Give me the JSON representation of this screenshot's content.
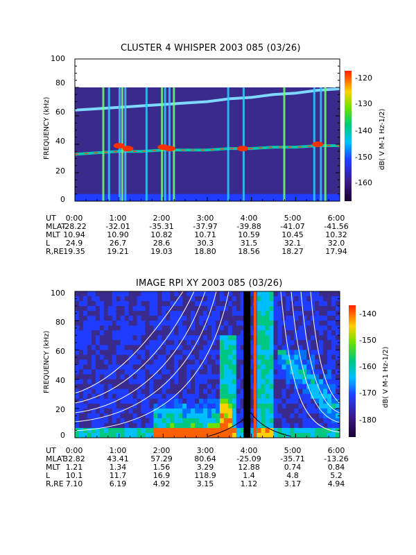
{
  "chart_data": [
    {
      "type": "heatmap",
      "title": "CLUSTER 4 WHISPER 2003 085 (03/26)",
      "ylabel": "FREQUENCY (kHz)",
      "ylim": [
        0,
        100
      ],
      "y_ticks": [
        "0",
        "20",
        "40",
        "60",
        "80",
        "100"
      ],
      "colorbar": {
        "label": "dB( V M-1 Hz-1/2)",
        "range": [
          -167,
          -117
        ],
        "ticks": [
          "-120",
          "-130",
          "-140",
          "-150",
          "-160"
        ]
      },
      "data_ceiling_khz": 80,
      "features": {
        "lower_band_khz": [
          [
            0,
            33
          ],
          [
            0.5,
            34
          ],
          [
            1,
            35
          ],
          [
            1.5,
            35
          ],
          [
            2,
            36
          ],
          [
            2.5,
            36
          ],
          [
            3,
            36
          ],
          [
            3.5,
            37
          ],
          [
            4,
            37
          ],
          [
            4.5,
            38
          ],
          [
            5,
            38
          ],
          [
            5.5,
            39
          ],
          [
            6,
            39
          ]
        ],
        "upper_band_khz": [
          [
            0,
            64
          ],
          [
            0.5,
            65
          ],
          [
            1,
            66
          ],
          [
            1.5,
            67
          ],
          [
            2,
            68
          ],
          [
            2.5,
            69
          ],
          [
            3,
            70
          ],
          [
            3.5,
            72
          ],
          [
            4,
            73
          ],
          [
            4.5,
            75
          ],
          [
            5,
            76
          ],
          [
            5.5,
            78
          ],
          [
            6,
            79
          ]
        ]
      },
      "ephemeris": {
        "row_labels": [
          "UT",
          "MLAT",
          "MLT",
          "L",
          "R,RE"
        ],
        "rows": [
          [
            "0:00",
            "1:00",
            "2:00",
            "3:00",
            "4:00",
            "5:00",
            "6:00"
          ],
          [
            "-28.22",
            "-32.01",
            "-35.31",
            "-37.97",
            "-39.88",
            "-41.07",
            "-41.56"
          ],
          [
            "10.94",
            "10.90",
            "10.82",
            "10.71",
            "10.59",
            "10.45",
            "10.32"
          ],
          [
            "24.9",
            "26.7",
            "28.6",
            "30.3",
            "31.5",
            "32.1",
            "32.0"
          ],
          [
            "19.35",
            "19.21",
            "19.03",
            "18.80",
            "18.56",
            "18.27",
            "17.94"
          ]
        ]
      }
    },
    {
      "type": "heatmap",
      "title": "IMAGE RPI XY 2003 085 (03/26)",
      "ylabel": "FREQUENCY (kHz)",
      "ylim": [
        0,
        100
      ],
      "y_ticks": [
        "0",
        "20",
        "40",
        "60",
        "80",
        "100"
      ],
      "colorbar": {
        "label": "dB( V M-1 Hz-1/2)",
        "range": [
          -186,
          -134
        ],
        "ticks": [
          "-140",
          "-150",
          "-160",
          "-170",
          "-180"
        ]
      },
      "ephemeris": {
        "row_labels": [
          "UT",
          "MLAT",
          "MLT",
          "L",
          "R,RE"
        ],
        "rows": [
          [
            "0:00",
            "1:00",
            "2:00",
            "3:00",
            "4:00",
            "5:00",
            "6:00"
          ],
          [
            "32.82",
            "43.41",
            "57.29",
            "80.64",
            "-25.09",
            "-35.71",
            "-13.26"
          ],
          [
            "1.21",
            "1.34",
            "1.56",
            "3.29",
            "12.88",
            "0.74",
            "0.84"
          ],
          [
            "10.1",
            "11.7",
            "16.9",
            "118.9",
            "1.4",
            "4.8",
            "5.2"
          ],
          [
            "7.10",
            "6.19",
            "4.92",
            "3.15",
            "1.12",
            "3.17",
            "4.94"
          ]
        ]
      }
    }
  ]
}
